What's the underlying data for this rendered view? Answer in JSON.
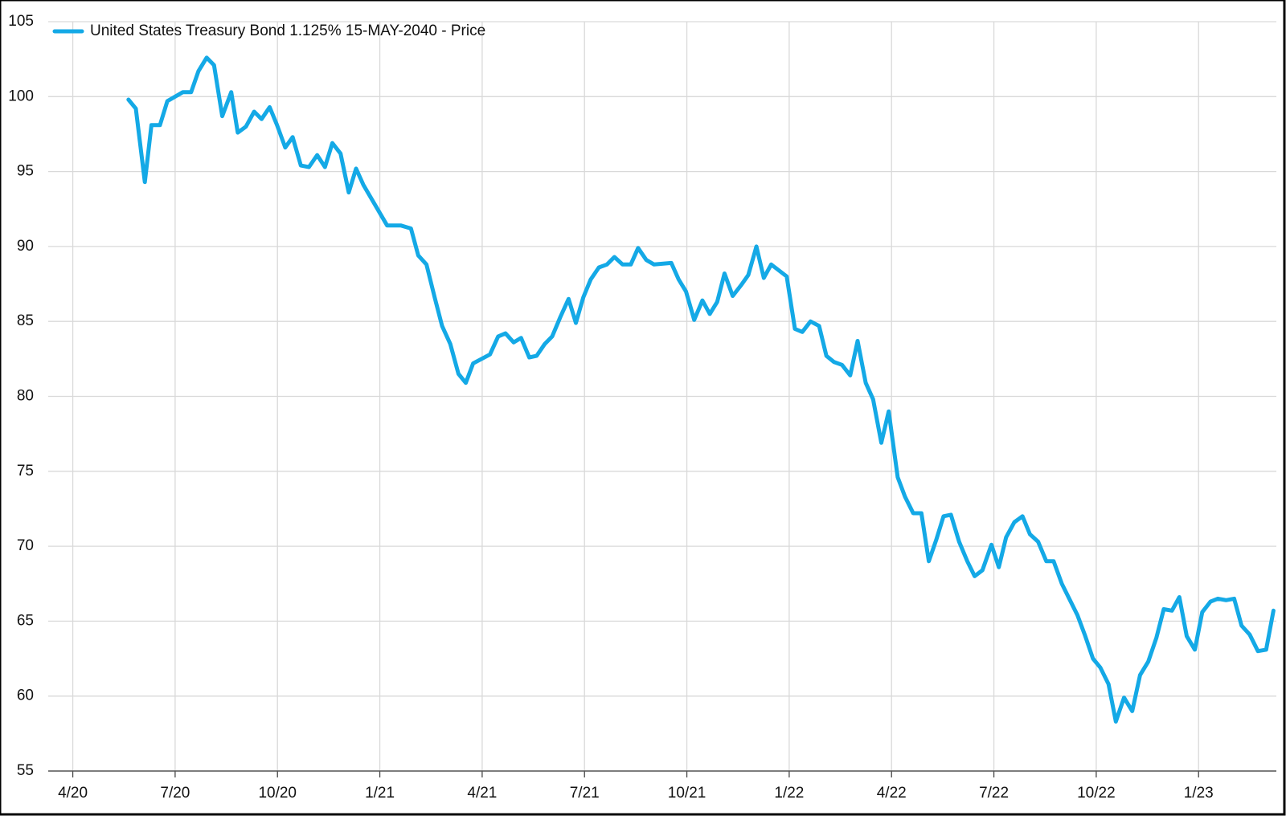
{
  "chart_data": {
    "type": "line",
    "x": [
      2020.386,
      2020.404,
      2020.426,
      2020.442,
      2020.463,
      2020.481,
      2020.519,
      2020.539,
      2020.557,
      2020.577,
      2020.595,
      2020.615,
      2020.637,
      2020.653,
      2020.673,
      2020.693,
      2020.711,
      2020.731,
      2020.749,
      2020.769,
      2020.787,
      2020.807,
      2020.827,
      2020.847,
      2020.866,
      2020.884,
      2020.904,
      2020.924,
      2020.942,
      2020.96,
      2021.018,
      2021.052,
      2021.076,
      2021.094,
      2021.114,
      2021.134,
      2021.152,
      2021.172,
      2021.192,
      2021.21,
      2021.228,
      2021.269,
      2021.289,
      2021.307,
      2021.327,
      2021.345,
      2021.365,
      2021.383,
      2021.403,
      2021.421,
      2021.441,
      2021.461,
      2021.479,
      2021.497,
      2021.515,
      2021.535,
      2021.555,
      2021.573,
      2021.593,
      2021.613,
      2021.631,
      2021.651,
      2021.67,
      2021.712,
      2021.73,
      2021.748,
      2021.768,
      2021.788,
      2021.806,
      2021.824,
      2021.842,
      2021.862,
      2021.882,
      2021.9,
      2021.92,
      2021.938,
      2021.956,
      2021.994,
      2022.014,
      2022.032,
      2022.052,
      2022.073,
      2022.091,
      2022.109,
      2022.129,
      2022.149,
      2022.167,
      2022.187,
      2022.205,
      2022.225,
      2022.243,
      2022.265,
      2022.283,
      2022.303,
      2022.323,
      2022.341,
      2022.359,
      2022.377,
      2022.395,
      2022.415,
      2022.435,
      2022.453,
      2022.472,
      2022.494,
      2022.512,
      2022.53,
      2022.55,
      2022.57,
      2022.588,
      2022.608,
      2022.628,
      2022.646,
      2022.666,
      2022.684,
      2022.704,
      2022.722,
      2022.742,
      2022.76,
      2022.78,
      2022.798,
      2022.818,
      2022.838,
      2022.857,
      2022.877,
      2022.897,
      2022.915,
      2022.935,
      2022.953,
      2022.971,
      2022.991,
      2023.009,
      2023.029,
      2023.047,
      2023.067,
      2023.087,
      2023.105,
      2023.125,
      2023.145,
      2023.165,
      2023.183
    ],
    "series": [
      {
        "name": "United States Treasury Bond 1.125% 15-MAY-2040 - Price",
        "color": "#14a9e6",
        "values": [
          99.8,
          99.2,
          94.3,
          98.1,
          98.1,
          99.7,
          100.3,
          100.3,
          101.7,
          102.6,
          102.1,
          98.7,
          100.3,
          97.6,
          98.0,
          99.0,
          98.5,
          99.3,
          98.1,
          96.6,
          97.3,
          95.4,
          95.3,
          96.1,
          95.3,
          96.9,
          96.2,
          93.6,
          95.2,
          94.1,
          91.4,
          91.4,
          91.2,
          89.4,
          88.8,
          86.6,
          84.7,
          83.5,
          81.5,
          80.9,
          82.2,
          82.8,
          84.0,
          84.2,
          83.6,
          83.9,
          82.6,
          82.7,
          83.5,
          84.0,
          85.3,
          86.5,
          84.9,
          86.6,
          87.8,
          88.6,
          88.8,
          89.3,
          88.8,
          88.8,
          89.9,
          89.1,
          88.8,
          88.9,
          87.8,
          87.0,
          85.1,
          86.4,
          85.5,
          86.3,
          88.2,
          86.7,
          87.4,
          88.1,
          90.0,
          87.9,
          88.8,
          88.0,
          84.5,
          84.3,
          85.0,
          84.7,
          82.7,
          82.3,
          82.1,
          81.4,
          83.7,
          80.9,
          79.8,
          76.9,
          79.0,
          74.6,
          73.3,
          72.2,
          72.2,
          69.0,
          70.4,
          72.0,
          72.1,
          70.3,
          69.0,
          68.0,
          68.4,
          70.1,
          68.6,
          70.6,
          71.6,
          72.0,
          70.8,
          70.3,
          69.0,
          69.0,
          67.5,
          66.5,
          65.4,
          64.1,
          62.5,
          61.9,
          60.8,
          58.3,
          59.9,
          59.0,
          61.4,
          62.3,
          63.9,
          65.8,
          65.7,
          66.6,
          64.0,
          63.1,
          65.6,
          66.3,
          66.5,
          66.4,
          66.5,
          64.7,
          64.1,
          63.0,
          63.1,
          65.7
        ]
      }
    ],
    "xlim": [
      2020.19,
      2023.19
    ],
    "xticks": [
      {
        "value": 2020.25,
        "label": "4/20"
      },
      {
        "value": 2020.5,
        "label": "7/20"
      },
      {
        "value": 2020.75,
        "label": "10/20"
      },
      {
        "value": 2021,
        "label": "1/21"
      },
      {
        "value": 2021.25,
        "label": "4/21"
      },
      {
        "value": 2021.5,
        "label": "7/21"
      },
      {
        "value": 2021.75,
        "label": "10/21"
      },
      {
        "value": 2022,
        "label": "1/22"
      },
      {
        "value": 2022.25,
        "label": "4/22"
      },
      {
        "value": 2022.5,
        "label": "7/22"
      },
      {
        "value": 2022.75,
        "label": "10/22"
      },
      {
        "value": 2023,
        "label": "1/23"
      }
    ],
    "ylim": [
      55,
      105
    ],
    "yticks": [
      55,
      60,
      65,
      70,
      75,
      80,
      85,
      90,
      95,
      100,
      105
    ],
    "grid": true,
    "legend": "upper-left"
  }
}
